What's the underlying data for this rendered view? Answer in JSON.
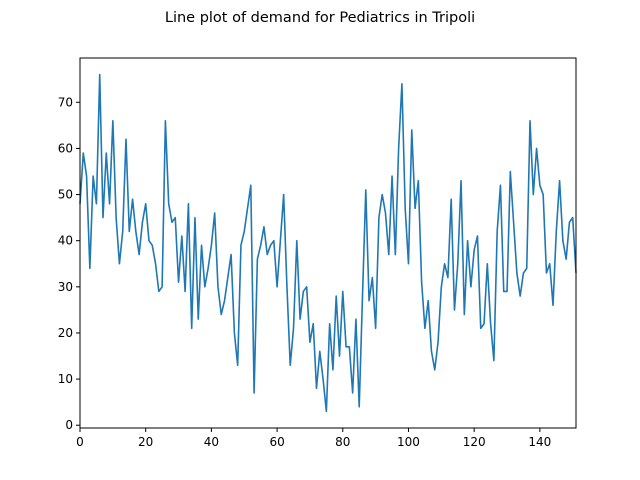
{
  "chart_data": {
    "type": "line",
    "title": "Line plot of demand for Pediatrics in Tripoli",
    "xlabel": "",
    "ylabel": "",
    "xlim": [
      0,
      151
    ],
    "ylim": [
      -0.6,
      79.6
    ],
    "xticks": [
      0,
      20,
      40,
      60,
      80,
      100,
      120,
      140
    ],
    "yticks": [
      0,
      10,
      20,
      30,
      40,
      50,
      60,
      70
    ],
    "grid": false,
    "legend": "none",
    "colors": {
      "line": "#1f77b4",
      "axes": "#000000",
      "background": "#ffffff"
    },
    "series": [
      {
        "values": [
          48,
          59,
          54,
          34,
          54,
          48,
          76,
          45,
          59,
          48,
          66,
          45,
          35,
          42,
          62,
          42,
          49,
          42,
          37,
          44,
          48,
          40,
          39,
          35,
          29,
          30,
          66,
          48,
          44,
          45,
          31,
          41,
          29,
          48,
          21,
          45,
          23,
          39,
          30,
          34,
          39,
          46,
          30,
          24,
          27,
          32,
          37,
          20,
          13,
          39,
          42,
          47,
          52,
          7,
          36,
          39,
          43,
          37,
          39,
          40,
          30,
          40,
          50,
          30,
          13,
          21,
          40,
          23,
          29,
          30,
          18,
          22,
          8,
          16,
          10,
          3,
          22,
          12,
          28,
          15,
          29,
          17,
          17,
          7,
          23,
          4,
          28,
          51,
          27,
          32,
          21,
          45,
          50,
          46,
          37,
          54,
          37,
          60,
          74,
          47,
          35,
          64,
          47,
          53,
          31,
          21,
          27,
          16,
          12,
          18,
          30,
          35,
          32,
          49,
          25,
          35,
          53,
          24,
          40,
          30,
          38,
          41,
          21,
          22,
          35,
          22,
          14,
          42,
          52,
          29,
          29,
          55,
          44,
          33,
          28,
          33,
          34,
          66,
          50,
          60,
          52,
          50,
          33,
          35,
          26,
          42,
          53,
          40,
          36,
          44,
          45,
          33
        ]
      }
    ]
  }
}
